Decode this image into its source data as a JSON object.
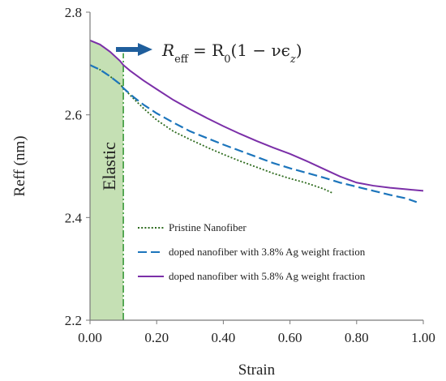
{
  "chart_data": {
    "type": "line",
    "xlabel": "Strain",
    "ylabel": "Reff (nm)",
    "xlim": [
      0,
      1
    ],
    "ylim": [
      2.2,
      2.8
    ],
    "x_ticks": [
      "0.00",
      "0.20",
      "0.40",
      "0.60",
      "0.80",
      "1.00"
    ],
    "y_ticks": [
      "2.2",
      "2.4",
      "2.6",
      "2.8"
    ],
    "legend_position": "lower-right",
    "series": [
      {
        "name": "Pristine Nanofiber",
        "color": "#2e6b1e",
        "style": "dotted",
        "x": [
          0.0,
          0.03,
          0.06,
          0.09,
          0.1,
          0.13,
          0.16,
          0.2,
          0.25,
          0.3,
          0.35,
          0.4,
          0.45,
          0.5,
          0.55,
          0.6,
          0.65,
          0.7,
          0.73
        ],
        "y": [
          2.697,
          2.688,
          2.675,
          2.66,
          2.652,
          2.632,
          2.613,
          2.59,
          2.568,
          2.552,
          2.537,
          2.523,
          2.51,
          2.498,
          2.486,
          2.476,
          2.467,
          2.456,
          2.447
        ]
      },
      {
        "name": "doped nanofiber with 3.8% Ag weight fraction",
        "color": "#1c75bc",
        "style": "dashed",
        "x": [
          0.0,
          0.03,
          0.06,
          0.09,
          0.1,
          0.13,
          0.16,
          0.2,
          0.25,
          0.3,
          0.35,
          0.4,
          0.45,
          0.5,
          0.55,
          0.6,
          0.65,
          0.7,
          0.75,
          0.8,
          0.85,
          0.9,
          0.95,
          0.98
        ],
        "y": [
          2.697,
          2.688,
          2.675,
          2.66,
          2.652,
          2.635,
          2.62,
          2.603,
          2.585,
          2.568,
          2.555,
          2.542,
          2.53,
          2.518,
          2.506,
          2.496,
          2.487,
          2.478,
          2.468,
          2.46,
          2.452,
          2.444,
          2.437,
          2.43
        ]
      },
      {
        "name": "doped nanofiber with 5.8% Ag weight fraction",
        "color": "#7b2fa8",
        "style": "solid",
        "x": [
          0.0,
          0.03,
          0.06,
          0.09,
          0.1,
          0.12,
          0.16,
          0.2,
          0.25,
          0.3,
          0.35,
          0.4,
          0.45,
          0.5,
          0.55,
          0.6,
          0.65,
          0.7,
          0.75,
          0.8,
          0.85,
          0.9,
          0.95,
          1.0
        ],
        "y": [
          2.745,
          2.737,
          2.723,
          2.705,
          2.697,
          2.686,
          2.667,
          2.65,
          2.629,
          2.611,
          2.594,
          2.578,
          2.563,
          2.549,
          2.536,
          2.524,
          2.51,
          2.495,
          2.48,
          2.468,
          2.462,
          2.458,
          2.455,
          2.452
        ]
      }
    ],
    "annotations": {
      "elastic_label": "Elastic",
      "elastic_boundary_x": 0.1,
      "equation_lhs": "R",
      "equation_lhs_sub": "eff",
      "equation_rhs": "= R",
      "equation_rhs_sub": "0",
      "equation_tail": "(1 − νϵ",
      "equation_tail_sub": "z",
      "equation_close": ")"
    },
    "colors": {
      "elastic_fill": "#c5e0b4",
      "elastic_line": "#3a9a3a",
      "arrow": "#1f5e9c"
    }
  }
}
